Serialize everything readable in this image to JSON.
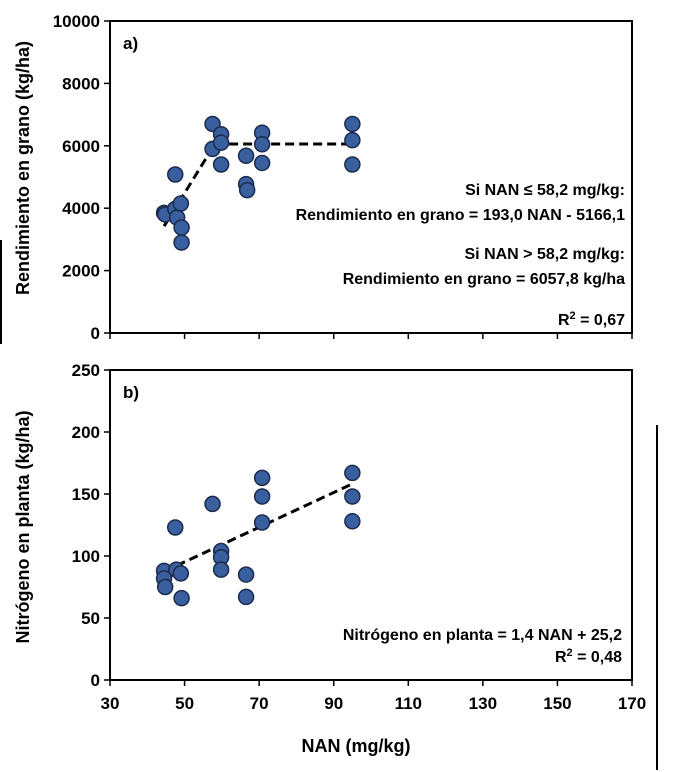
{
  "chart_data": [
    {
      "type": "scatter",
      "panel_label": "a)",
      "ylabel": "Rendimiento en grano (kg/ha)",
      "xlabel": "",
      "xlim": [
        30,
        170
      ],
      "ylim": [
        0,
        10000
      ],
      "y_ticks": [
        "0",
        "2000",
        "4000",
        "6000",
        "8000",
        "10000"
      ],
      "points": [
        {
          "x": 44.5,
          "y": 3850
        },
        {
          "x": 44.8,
          "y": 3800
        },
        {
          "x": 47.5,
          "y": 5080
        },
        {
          "x": 47.5,
          "y": 3980
        },
        {
          "x": 48.0,
          "y": 3700
        },
        {
          "x": 49.0,
          "y": 4150
        },
        {
          "x": 49.2,
          "y": 3380
        },
        {
          "x": 49.2,
          "y": 2900
        },
        {
          "x": 57.5,
          "y": 6700
        },
        {
          "x": 57.5,
          "y": 5900
        },
        {
          "x": 59.8,
          "y": 6370
        },
        {
          "x": 59.8,
          "y": 6100
        },
        {
          "x": 59.8,
          "y": 5400
        },
        {
          "x": 66.5,
          "y": 5680
        },
        {
          "x": 66.5,
          "y": 4770
        },
        {
          "x": 66.8,
          "y": 4580
        },
        {
          "x": 70.8,
          "y": 6420
        },
        {
          "x": 70.8,
          "y": 6050
        },
        {
          "x": 70.8,
          "y": 5450
        },
        {
          "x": 95.0,
          "y": 6700
        },
        {
          "x": 95.0,
          "y": 6180
        },
        {
          "x": 95.0,
          "y": 5400
        }
      ],
      "fit_lines": [
        {
          "x": [
            44.5,
            58.2
          ],
          "y": [
            3422.4,
            6067.5
          ]
        },
        {
          "x": [
            58.2,
            95.0
          ],
          "y": [
            6057.8,
            6057.8
          ]
        }
      ],
      "annotations": {
        "line1": "Si NAN ≤ 58,2 mg/kg:",
        "line2": "Rendimiento en grano = 193,0 NAN - 5166,1",
        "line3": "Si NAN > 58,2 mg/kg:",
        "line4": "Rendimiento en grano = 6057,8 kg/ha",
        "r2_prefix": "R",
        "r2_exp": "2",
        "r2_value": " = 0,67"
      }
    },
    {
      "type": "scatter",
      "panel_label": "b)",
      "ylabel": "Nitrógeno en planta (kg/ha)",
      "xlabel": "NAN  (mg/kg)",
      "xlim": [
        30,
        170
      ],
      "ylim": [
        0,
        250
      ],
      "x_ticks": [
        "30",
        "50",
        "70",
        "90",
        "110",
        "130",
        "150",
        "170"
      ],
      "y_ticks": [
        "0",
        "50",
        "100",
        "150",
        "200",
        "250"
      ],
      "points": [
        {
          "x": 44.5,
          "y": 88
        },
        {
          "x": 44.5,
          "y": 82
        },
        {
          "x": 44.8,
          "y": 75
        },
        {
          "x": 47.5,
          "y": 123
        },
        {
          "x": 47.8,
          "y": 89
        },
        {
          "x": 49.0,
          "y": 86
        },
        {
          "x": 49.2,
          "y": 66
        },
        {
          "x": 57.5,
          "y": 142
        },
        {
          "x": 59.8,
          "y": 104
        },
        {
          "x": 59.8,
          "y": 99
        },
        {
          "x": 59.8,
          "y": 89
        },
        {
          "x": 66.5,
          "y": 85
        },
        {
          "x": 66.5,
          "y": 67
        },
        {
          "x": 70.8,
          "y": 163
        },
        {
          "x": 70.8,
          "y": 148
        },
        {
          "x": 70.8,
          "y": 127
        },
        {
          "x": 95.0,
          "y": 167
        },
        {
          "x": 95.0,
          "y": 148
        },
        {
          "x": 95.0,
          "y": 128
        }
      ],
      "fit_lines": [
        {
          "x": [
            44.5,
            95.0
          ],
          "y": [
            87.5,
            158.2
          ]
        }
      ],
      "annotations": {
        "line1": "Nitrógeno en planta = 1,4 NAN + 25,2",
        "r2_prefix": "R",
        "r2_exp": "2",
        "r2_value": " = 0,48"
      }
    }
  ],
  "colors": {
    "marker_fill": "#3A5F9E",
    "marker_stroke": "#1A2B4C",
    "axis": "#000000"
  }
}
